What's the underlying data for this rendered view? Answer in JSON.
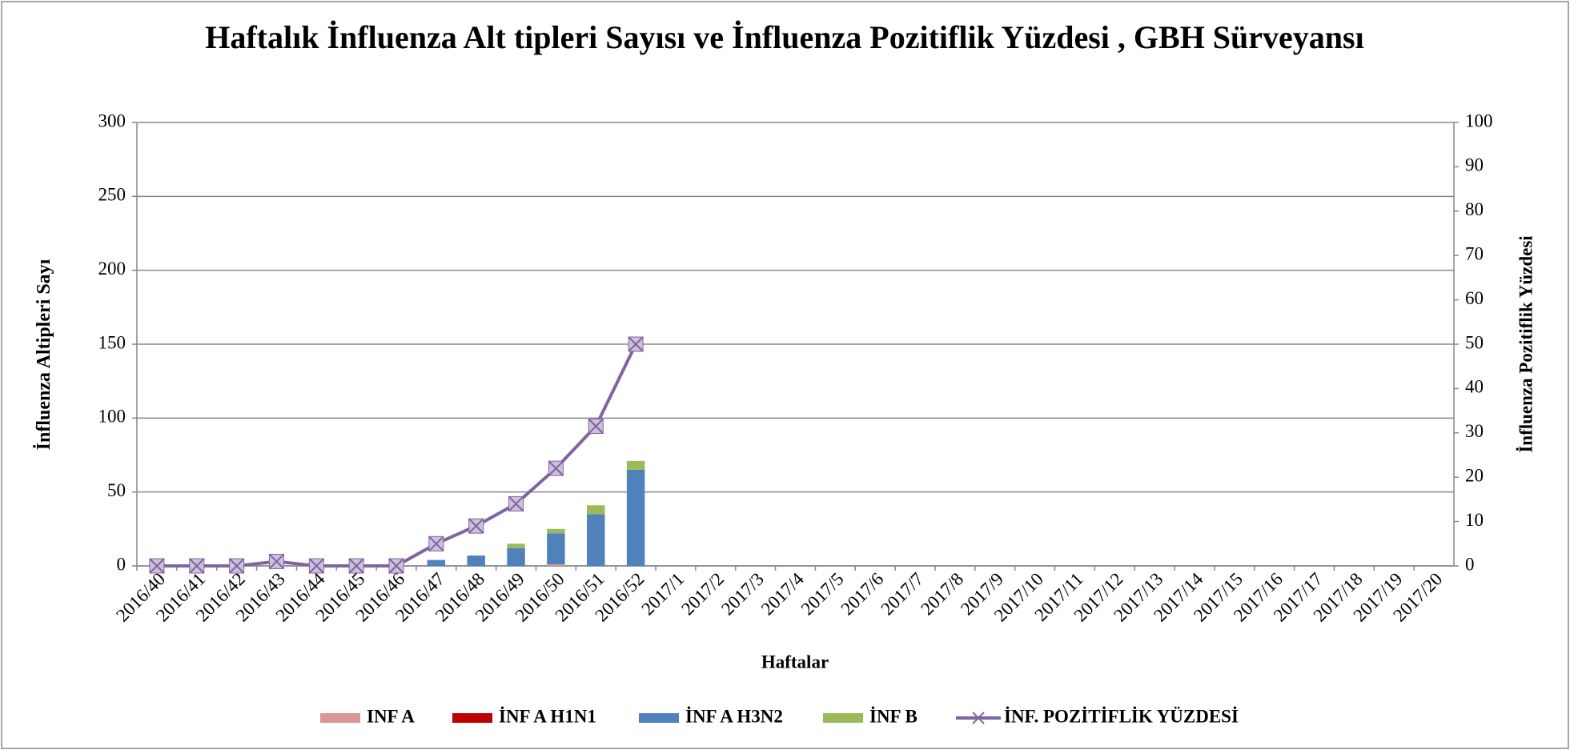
{
  "chart_data": {
    "type": "bar",
    "title": "Haftalık İnfluenza Alt tipleri Sayısı ve İnfluenza Pozitiflik Yüzdesi , GBH Sürveyansı",
    "xlabel": "Haftalar",
    "ylabel": "İnfluenza Altipleri Sayı",
    "y2label": "İnfluenza Pozitiflik Yüzdesi",
    "stacked": true,
    "grid": true,
    "legend": "bottom",
    "categories": [
      "2016/40",
      "2016/41",
      "2016/42",
      "2016/43",
      "2016/44",
      "2016/45",
      "2016/46",
      "2016/47",
      "2016/48",
      "2016/49",
      "2016/50",
      "2016/51",
      "2016/52",
      "2017/1",
      "2017/2",
      "2017/3",
      "2017/4",
      "2017/5",
      "2017/6",
      "2017/7",
      "2017/8",
      "2017/9",
      "2017/10",
      "2017/11",
      "2017/12",
      "2017/13",
      "2017/14",
      "2017/15",
      "2017/16",
      "2017/17",
      "2017/18",
      "2017/19",
      "2017/20"
    ],
    "ylim": [
      0,
      300
    ],
    "yticks": [
      0,
      50,
      100,
      150,
      200,
      250,
      300
    ],
    "y2lim": [
      0,
      100
    ],
    "y2ticks": [
      0,
      10,
      20,
      30,
      40,
      50,
      60,
      70,
      80,
      90,
      100
    ],
    "series": [
      {
        "name": "INF A",
        "color": "#d99694",
        "values": [
          0,
          0,
          0,
          0,
          0,
          0,
          0,
          0,
          0,
          0,
          1,
          0,
          0,
          null,
          null,
          null,
          null,
          null,
          null,
          null,
          null,
          null,
          null,
          null,
          null,
          null,
          null,
          null,
          null,
          null,
          null,
          null,
          null
        ]
      },
      {
        "name": "İNF A H1N1",
        "color": "#c00000",
        "values": [
          0,
          0,
          0,
          0,
          0,
          0,
          0,
          0,
          0,
          0,
          0,
          0,
          0,
          null,
          null,
          null,
          null,
          null,
          null,
          null,
          null,
          null,
          null,
          null,
          null,
          null,
          null,
          null,
          null,
          null,
          null,
          null,
          null
        ]
      },
      {
        "name": "İNF A H3N2",
        "color": "#4f81bd",
        "values": [
          0,
          0,
          0,
          0,
          0,
          0,
          0,
          4,
          7,
          12,
          21,
          35,
          65,
          null,
          null,
          null,
          null,
          null,
          null,
          null,
          null,
          null,
          null,
          null,
          null,
          null,
          null,
          null,
          null,
          null,
          null,
          null,
          null
        ]
      },
      {
        "name": "İNF B",
        "color": "#9bbb59",
        "values": [
          0,
          0,
          0,
          0,
          0,
          0,
          0,
          0,
          0,
          3,
          3,
          6,
          6,
          null,
          null,
          null,
          null,
          null,
          null,
          null,
          null,
          null,
          null,
          null,
          null,
          null,
          null,
          null,
          null,
          null,
          null,
          null,
          null
        ]
      },
      {
        "name": "İNF. POZİTİFLİK YÜZDESİ",
        "color": "#8064a2",
        "type": "line",
        "axis": "y2",
        "marker_fill": "#ccc0da",
        "values": [
          0,
          0,
          0,
          1,
          0,
          0,
          0,
          5,
          9,
          14,
          22,
          31.5,
          50,
          null,
          null,
          null,
          null,
          null,
          null,
          null,
          null,
          null,
          null,
          null,
          null,
          null,
          null,
          null,
          null,
          null,
          null,
          null,
          null
        ]
      }
    ]
  }
}
